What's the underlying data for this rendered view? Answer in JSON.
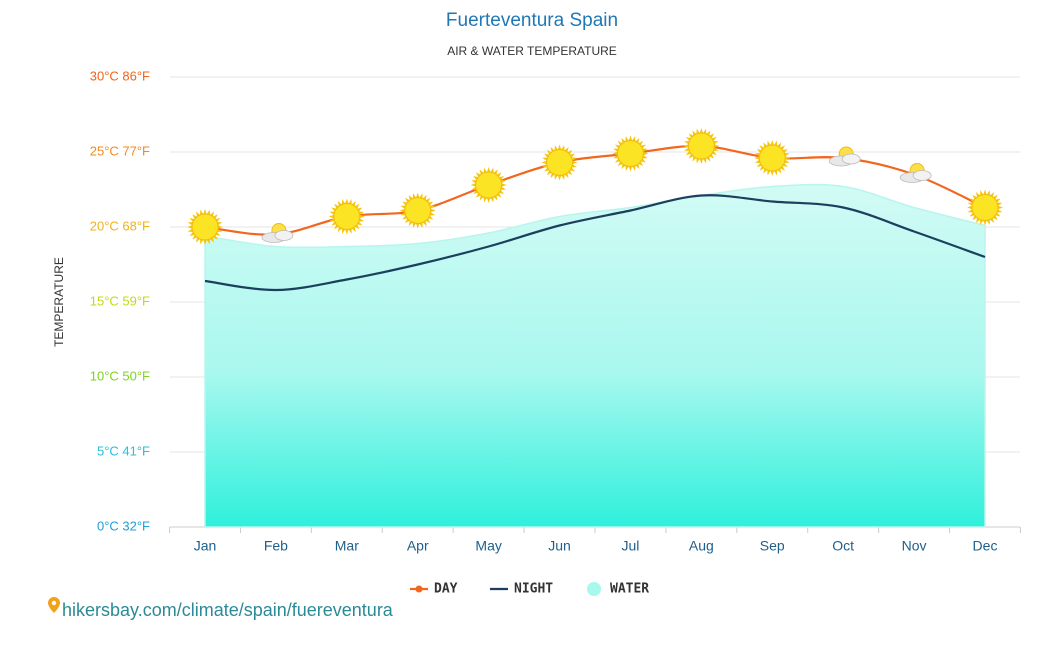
{
  "chart_data": {
    "type": "line",
    "title": "Fuerteventura Spain",
    "subtitle": "AIR & WATER TEMPERATURE",
    "y_label": "TEMPERATURE",
    "source": "hikersbay.com/climate/spain/fuereventura",
    "categories": [
      "Jan",
      "Feb",
      "Mar",
      "Apr",
      "May",
      "Jun",
      "Jul",
      "Aug",
      "Sep",
      "Oct",
      "Nov",
      "Dec"
    ],
    "series": [
      {
        "name": "DAY",
        "color": "#f2671f",
        "values": [
          20.0,
          19.5,
          20.7,
          21.1,
          22.8,
          24.3,
          24.9,
          25.4,
          24.6,
          24.6,
          23.5,
          21.3
        ]
      },
      {
        "name": "NIGHT",
        "color": "#1c3f5e",
        "values": [
          16.4,
          15.8,
          16.5,
          17.5,
          18.7,
          20.1,
          21.1,
          22.1,
          21.7,
          21.3,
          19.7,
          18.0
        ]
      },
      {
        "name": "WATER",
        "color": "#2ef0dc",
        "values": [
          19.4,
          18.7,
          18.7,
          18.9,
          19.6,
          20.7,
          21.3,
          22.1,
          22.7,
          22.7,
          21.3,
          20.1
        ]
      }
    ],
    "day_icons": [
      "sun",
      "cloud",
      "sun",
      "sun",
      "sun",
      "sun",
      "sun",
      "sun",
      "sun",
      "cloud",
      "cloud",
      "sun"
    ],
    "ylim": [
      0,
      30
    ],
    "yticks": [
      {
        "value": 0,
        "label": "0°C 32°F"
      },
      {
        "value": 5,
        "label": "5°C 41°F"
      },
      {
        "value": 10,
        "label": "10°C 50°F"
      },
      {
        "value": 15,
        "label": "15°C 59°F"
      },
      {
        "value": 20,
        "label": "20°C 68°F"
      },
      {
        "value": 25,
        "label": "25°C 77°F"
      },
      {
        "value": 30,
        "label": "30°C 86°F"
      }
    ],
    "ytick_colors": [
      "#1e9fd6",
      "#22c3d9",
      "#7ed321",
      "#c3d916",
      "#f0b21b",
      "#f28a1b",
      "#f2621b"
    ],
    "grid": true
  }
}
